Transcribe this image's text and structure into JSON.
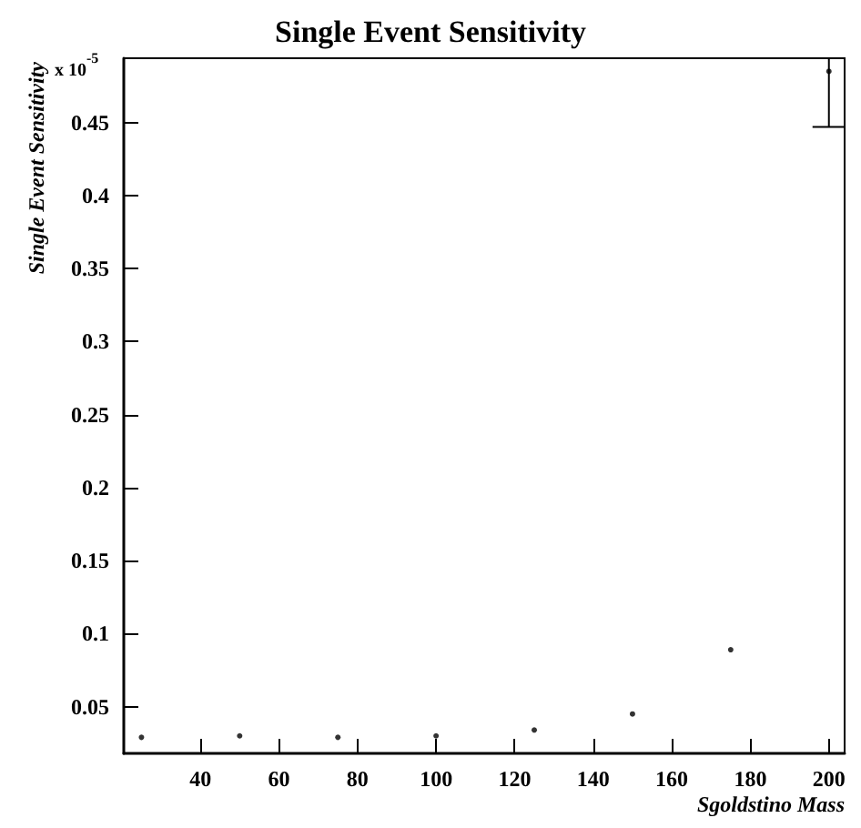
{
  "chart_data": {
    "type": "scatter",
    "title": "Single Event Sensitivity",
    "xlabel": "Sgoldstino Mass",
    "ylabel": "Single Event Sensitivity",
    "annotations": [
      "x 10$^{-5}$"
    ],
    "x": [
      25,
      50,
      75,
      100,
      125,
      150,
      175,
      200
    ],
    "values": [
      0.029,
      0.03,
      0.029,
      0.03,
      0.034,
      0.045,
      0.089,
      0.485
    ],
    "errors": [
      null,
      null,
      null,
      null,
      null,
      null,
      null,
      [
        0.447,
        0.494
      ]
    ],
    "color": "#000000",
    "marker": "circle",
    "xlim": [
      20.5,
      204
    ],
    "xticks": [
      40,
      60,
      80,
      100,
      120,
      140,
      160,
      180,
      200
    ],
    "ylim": [
      0.018,
      0.494
    ],
    "yticks": [
      0.05,
      0.1,
      0.15,
      0.2,
      0.25,
      0.3,
      0.35,
      0.4,
      0.45
    ],
    "grid": false
  }
}
